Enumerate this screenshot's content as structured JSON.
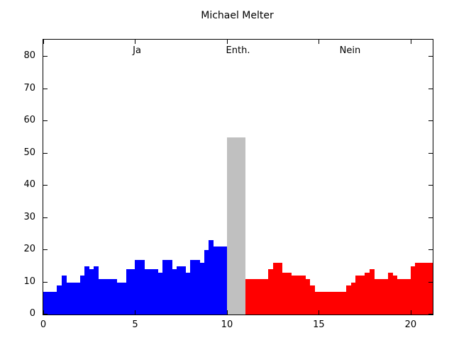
{
  "window": {
    "title": "Michael Melter"
  },
  "colors": {
    "yes": "#0000ff",
    "abstain": "#c0c0c0",
    "no": "#ff0000",
    "frame": "#000000",
    "background": "#ffffff",
    "text": "#000000"
  },
  "chart_data": {
    "type": "bar",
    "title": "Michael Melter",
    "xlabel": "",
    "ylabel": "",
    "xlim": [
      0,
      21.2
    ],
    "ylim": [
      0,
      85.3
    ],
    "x_ticks": [
      0,
      5,
      10,
      15,
      20
    ],
    "y_ticks": [
      0,
      10,
      20,
      30,
      40,
      50,
      60,
      70,
      80
    ],
    "grid": false,
    "legend_position": "none",
    "bin_width": 0.25,
    "annotations": [
      {
        "text": "Ja",
        "x": 5.1
      },
      {
        "text": "Enth.",
        "x": 10.6
      },
      {
        "text": "Nein",
        "x": 16.7
      }
    ],
    "series": [
      {
        "name": "Ja",
        "color_key": "yes",
        "x_start": 0,
        "values": [
          7,
          7,
          7,
          9,
          12,
          10,
          10,
          10,
          12,
          15,
          14,
          15,
          11,
          11,
          11,
          11,
          10,
          10,
          14,
          14,
          17,
          17,
          14,
          14,
          14,
          13,
          17,
          17,
          14,
          15,
          15,
          13,
          17,
          17,
          16,
          20,
          23,
          21,
          21,
          21
        ]
      },
      {
        "name": "Enth.",
        "color_key": "abstain",
        "x_start": 10,
        "values": [
          55,
          55,
          55,
          55
        ]
      },
      {
        "name": "Nein",
        "color_key": "no",
        "x_start": 11,
        "values": [
          11,
          11,
          11,
          11,
          11,
          14,
          16,
          16,
          13,
          13,
          12,
          12,
          12,
          11,
          9,
          7,
          7,
          7,
          7,
          7,
          7,
          7,
          9,
          10,
          12,
          12,
          13,
          14,
          11,
          11,
          11,
          13,
          12,
          11,
          11,
          11,
          15,
          16,
          16,
          16,
          16
        ]
      }
    ]
  }
}
